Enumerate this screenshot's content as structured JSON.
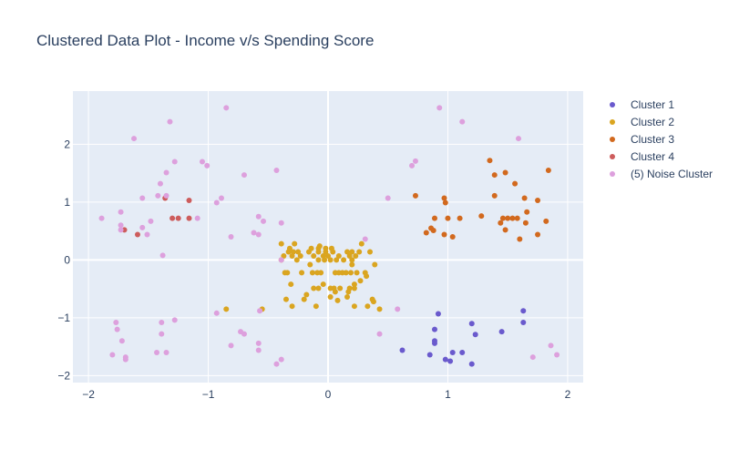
{
  "chart_data": {
    "type": "scatter",
    "title": "Clustered Data Plot - Income v/s Spending Score",
    "xlabel": "",
    "ylabel": "",
    "xlim": [
      -2.13,
      2.13
    ],
    "ylim": [
      -2.12,
      2.92
    ],
    "xticks": [
      "−2",
      "−1",
      "0",
      "1",
      "2"
    ],
    "xtick_values": [
      -2,
      -1,
      0,
      1,
      2
    ],
    "yticks": [
      "−2",
      "−1",
      "0",
      "1",
      "2"
    ],
    "ytick_values": [
      -2,
      -1,
      0,
      1,
      2
    ],
    "grid": true,
    "legend_position": "right",
    "series": [
      {
        "name": "Cluster 1",
        "color": "#6a5acd",
        "points": [
          [
            0.62,
            -1.56
          ],
          [
            0.85,
            -1.64
          ],
          [
            0.92,
            -0.93
          ],
          [
            0.89,
            -1.2
          ],
          [
            0.89,
            -1.4
          ],
          [
            0.89,
            -1.44
          ],
          [
            0.98,
            -1.72
          ],
          [
            1.02,
            -1.75
          ],
          [
            1.04,
            -1.6
          ],
          [
            1.12,
            -1.6
          ],
          [
            1.2,
            -1.1
          ],
          [
            1.2,
            -1.8
          ],
          [
            1.23,
            -1.29
          ],
          [
            1.45,
            -1.24
          ],
          [
            1.63,
            -0.88
          ],
          [
            1.63,
            -1.08
          ]
        ]
      },
      {
        "name": "Cluster 2",
        "color": "#daa520",
        "points": [
          [
            -0.85,
            -0.85
          ],
          [
            -0.55,
            -0.85
          ],
          [
            -0.39,
            0.28
          ],
          [
            -0.39,
            0.0
          ],
          [
            -0.37,
            0.07
          ],
          [
            -0.36,
            -0.22
          ],
          [
            -0.35,
            -0.68
          ],
          [
            -0.34,
            -0.22
          ],
          [
            -0.33,
            0.14
          ],
          [
            -0.32,
            0.2
          ],
          [
            -0.31,
            -0.42
          ],
          [
            -0.3,
            0.07
          ],
          [
            -0.3,
            -0.8
          ],
          [
            -0.29,
            0.14
          ],
          [
            -0.28,
            0.28
          ],
          [
            -0.26,
            0.0
          ],
          [
            -0.25,
            0.14
          ],
          [
            -0.23,
            0.07
          ],
          [
            -0.22,
            -0.22
          ],
          [
            -0.2,
            -0.68
          ],
          [
            -0.18,
            -0.6
          ],
          [
            -0.16,
            0.14
          ],
          [
            -0.15,
            -0.08
          ],
          [
            -0.14,
            0.2
          ],
          [
            -0.13,
            -0.22
          ],
          [
            -0.12,
            -0.49
          ],
          [
            -0.12,
            0.07
          ],
          [
            -0.1,
            -0.8
          ],
          [
            -0.09,
            -0.22
          ],
          [
            -0.08,
            0.0
          ],
          [
            -0.08,
            -0.49
          ],
          [
            -0.08,
            0.14
          ],
          [
            -0.08,
            0.2
          ],
          [
            -0.07,
            0.24
          ],
          [
            -0.06,
            -0.22
          ],
          [
            -0.04,
            -0.42
          ],
          [
            -0.04,
            0.07
          ],
          [
            -0.03,
            0.0
          ],
          [
            -0.02,
            0.2
          ],
          [
            -0.02,
            0.14
          ],
          [
            0.0,
            0.07
          ],
          [
            0.02,
            -0.49
          ],
          [
            0.02,
            -0.64
          ],
          [
            0.02,
            0.0
          ],
          [
            0.03,
            0.2
          ],
          [
            0.04,
            0.14
          ],
          [
            0.05,
            -0.49
          ],
          [
            0.06,
            -0.22
          ],
          [
            0.06,
            -0.55
          ],
          [
            0.07,
            0.0
          ],
          [
            0.08,
            -0.7
          ],
          [
            0.09,
            -0.22
          ],
          [
            0.09,
            0.07
          ],
          [
            0.1,
            -0.49
          ],
          [
            0.12,
            -0.22
          ],
          [
            0.13,
            0.0
          ],
          [
            0.15,
            -0.22
          ],
          [
            0.16,
            -0.64
          ],
          [
            0.16,
            0.14
          ],
          [
            0.17,
            -0.55
          ],
          [
            0.18,
            0.07
          ],
          [
            0.18,
            -0.49
          ],
          [
            0.19,
            -0.22
          ],
          [
            0.2,
            0.0
          ],
          [
            0.2,
            -0.08
          ],
          [
            0.2,
            0.14
          ],
          [
            0.22,
            -0.49
          ],
          [
            0.22,
            -0.42
          ],
          [
            0.22,
            -0.8
          ],
          [
            0.23,
            0.07
          ],
          [
            0.24,
            -0.22
          ],
          [
            0.26,
            0.14
          ],
          [
            0.27,
            -0.36
          ],
          [
            0.28,
            0.28
          ],
          [
            0.31,
            -0.22
          ],
          [
            0.32,
            -0.28
          ],
          [
            0.33,
            -0.8
          ],
          [
            0.35,
            0.14
          ],
          [
            0.37,
            -0.68
          ],
          [
            0.38,
            -0.72
          ],
          [
            0.39,
            -0.08
          ],
          [
            0.43,
            -0.85
          ]
        ]
      },
      {
        "name": "Cluster 3",
        "color": "#d2691e",
        "points": [
          [
            0.73,
            1.11
          ],
          [
            0.82,
            0.47
          ],
          [
            0.86,
            0.55
          ],
          [
            0.88,
            0.51
          ],
          [
            0.89,
            0.72
          ],
          [
            0.97,
            0.44
          ],
          [
            0.97,
            1.07
          ],
          [
            0.98,
            0.99
          ],
          [
            1.0,
            0.72
          ],
          [
            1.04,
            0.4
          ],
          [
            1.1,
            0.72
          ],
          [
            1.28,
            0.76
          ],
          [
            1.35,
            1.72
          ],
          [
            1.39,
            1.11
          ],
          [
            1.39,
            1.47
          ],
          [
            1.44,
            0.64
          ],
          [
            1.46,
            0.72
          ],
          [
            1.48,
            0.52
          ],
          [
            1.48,
            1.51
          ],
          [
            1.5,
            0.72
          ],
          [
            1.54,
            0.72
          ],
          [
            1.56,
            1.32
          ],
          [
            1.58,
            0.72
          ],
          [
            1.6,
            0.36
          ],
          [
            1.64,
            1.07
          ],
          [
            1.65,
            0.64
          ],
          [
            1.66,
            0.83
          ],
          [
            1.75,
            0.44
          ],
          [
            1.75,
            1.03
          ],
          [
            1.82,
            0.67
          ],
          [
            1.84,
            1.55
          ]
        ]
      },
      {
        "name": "Cluster 4",
        "color": "#cd5c5c",
        "points": [
          [
            -1.7,
            0.52
          ],
          [
            -1.59,
            0.44
          ],
          [
            -1.36,
            1.07
          ],
          [
            -1.3,
            0.72
          ],
          [
            -1.25,
            0.72
          ],
          [
            -1.16,
            0.72
          ],
          [
            -1.16,
            1.03
          ]
        ]
      },
      {
        "name": "(5) Noise Cluster",
        "color": "#dda0dd",
        "points": [
          [
            -1.89,
            0.72
          ],
          [
            -1.8,
            -1.64
          ],
          [
            -1.77,
            -1.08
          ],
          [
            -1.76,
            -1.2
          ],
          [
            -1.73,
            0.52
          ],
          [
            -1.73,
            0.6
          ],
          [
            -1.73,
            0.83
          ],
          [
            -1.72,
            -1.4
          ],
          [
            -1.69,
            -1.72
          ],
          [
            -1.69,
            -1.68
          ],
          [
            -1.62,
            2.1
          ],
          [
            -1.55,
            1.07
          ],
          [
            -1.55,
            0.56
          ],
          [
            -1.51,
            0.44
          ],
          [
            -1.48,
            0.67
          ],
          [
            -1.43,
            -1.6
          ],
          [
            -1.42,
            1.11
          ],
          [
            -1.4,
            1.32
          ],
          [
            -1.39,
            -1.08
          ],
          [
            -1.39,
            -1.28
          ],
          [
            -1.38,
            0.08
          ],
          [
            -1.35,
            1.51
          ],
          [
            -1.35,
            1.11
          ],
          [
            -1.35,
            -1.6
          ],
          [
            -1.32,
            2.39
          ],
          [
            -1.28,
            1.7
          ],
          [
            -1.28,
            -1.04
          ],
          [
            -1.09,
            0.72
          ],
          [
            -1.05,
            1.7
          ],
          [
            -1.01,
            1.63
          ],
          [
            -0.93,
            -0.92
          ],
          [
            -0.93,
            0.99
          ],
          [
            -0.89,
            1.07
          ],
          [
            -0.85,
            2.63
          ],
          [
            -0.81,
            0.4
          ],
          [
            -0.81,
            -1.48
          ],
          [
            -0.73,
            -1.24
          ],
          [
            -0.7,
            -1.28
          ],
          [
            -0.7,
            1.47
          ],
          [
            -0.62,
            0.47
          ],
          [
            -0.58,
            0.44
          ],
          [
            -0.58,
            -1.44
          ],
          [
            -0.58,
            -1.56
          ],
          [
            -0.58,
            0.75
          ],
          [
            -0.57,
            -0.88
          ],
          [
            -0.54,
            0.67
          ],
          [
            -0.43,
            1.55
          ],
          [
            -0.43,
            -1.8
          ],
          [
            -0.39,
            -1.72
          ],
          [
            -0.39,
            0.64
          ],
          [
            -0.39,
            0.0
          ],
          [
            0.31,
            0.36
          ],
          [
            0.43,
            -1.28
          ],
          [
            0.5,
            1.07
          ],
          [
            0.58,
            -0.85
          ],
          [
            0.7,
            1.63
          ],
          [
            0.73,
            1.71
          ],
          [
            0.93,
            2.63
          ],
          [
            1.12,
            2.39
          ],
          [
            1.59,
            2.1
          ],
          [
            1.71,
            -1.68
          ],
          [
            1.86,
            -1.48
          ],
          [
            1.91,
            -1.64
          ]
        ]
      }
    ]
  }
}
